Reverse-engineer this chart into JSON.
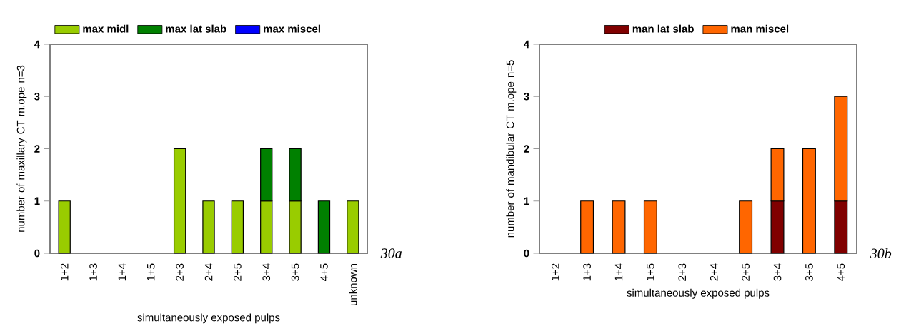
{
  "chart_data": [
    {
      "type": "bar",
      "stacked": true,
      "categories": [
        "1+2",
        "1+3",
        "1+4",
        "1+5",
        "2+3",
        "2+4",
        "2+5",
        "3+4",
        "3+5",
        "4+5",
        "unknown"
      ],
      "series": [
        {
          "name": "max midl",
          "color": "#99cc00",
          "values": [
            1,
            0,
            0,
            0,
            2,
            1,
            1,
            1,
            1,
            0,
            1
          ]
        },
        {
          "name": "max lat slab",
          "color": "#008000",
          "values": [
            0,
            0,
            0,
            0,
            0,
            0,
            0,
            1,
            1,
            1,
            0
          ]
        },
        {
          "name": "max miscel",
          "color": "#0000ff",
          "values": [
            0,
            0,
            0,
            0,
            0,
            0,
            0,
            0,
            0,
            0,
            0
          ]
        }
      ],
      "ylim": [
        0,
        4
      ],
      "yticks": [
        0,
        1,
        2,
        3,
        4
      ],
      "ylabel": "number of maxillary CT m.ope n=3",
      "xlabel": "simultaneously exposed pulps",
      "legend": "top left",
      "annotations": [
        "30a"
      ]
    },
    {
      "type": "bar",
      "stacked": true,
      "categories": [
        "1+2",
        "1+3",
        "1+4",
        "1+5",
        "2+3",
        "2+4",
        "2+5",
        "3+4",
        "3+5",
        "4+5"
      ],
      "series": [
        {
          "name": "man lat slab",
          "color": "#800000",
          "values": [
            0,
            0,
            0,
            0,
            0,
            0,
            0,
            1,
            0,
            1
          ]
        },
        {
          "name": "man miscel",
          "color": "#ff6600",
          "values": [
            0,
            1,
            1,
            1,
            0,
            0,
            1,
            1,
            2,
            2
          ]
        }
      ],
      "ylim": [
        0,
        4
      ],
      "yticks": [
        0,
        1,
        2,
        3,
        4
      ],
      "ylabel": "number of mandibular CT m.ope n=5",
      "xlabel": "simultaneously exposed pulps",
      "legend": "top",
      "annotations": [
        "30b"
      ]
    }
  ]
}
